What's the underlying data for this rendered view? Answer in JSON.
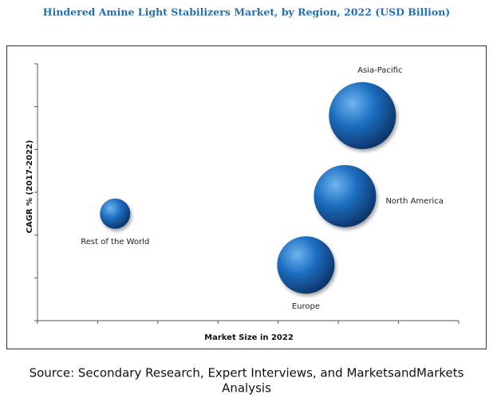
{
  "chart_data": {
    "type": "bubble",
    "title": "Hindered Amine Light Stabilizers Market, by Region, 2022 (USD Billion)",
    "x_label": "Market Size in 2022",
    "y_label": "CAGR % (2017-2022)",
    "source": [
      "Source: Secondary Research, Expert Interviews, and MarketsandMarkets",
      "Analysis"
    ],
    "color": "#1a6fc0",
    "xlim": [
      0,
      7
    ],
    "xticks": [
      0,
      1,
      2,
      3,
      4,
      5,
      6,
      7
    ],
    "ylim": [
      0,
      6
    ],
    "yticks": [
      0,
      1,
      2,
      3,
      4,
      5,
      6
    ],
    "points": [
      {
        "name": "Asia-Pacific",
        "x": 5.4,
        "y": 4.79,
        "size": 42
      },
      {
        "name": "North America",
        "x": 5.11,
        "y": 2.91,
        "size": 39
      },
      {
        "name": "Europe",
        "x": 4.46,
        "y": 1.3,
        "size": 36
      },
      {
        "name": "Rest of the World",
        "x": 1.29,
        "y": 2.5,
        "size": 19
      }
    ]
  }
}
